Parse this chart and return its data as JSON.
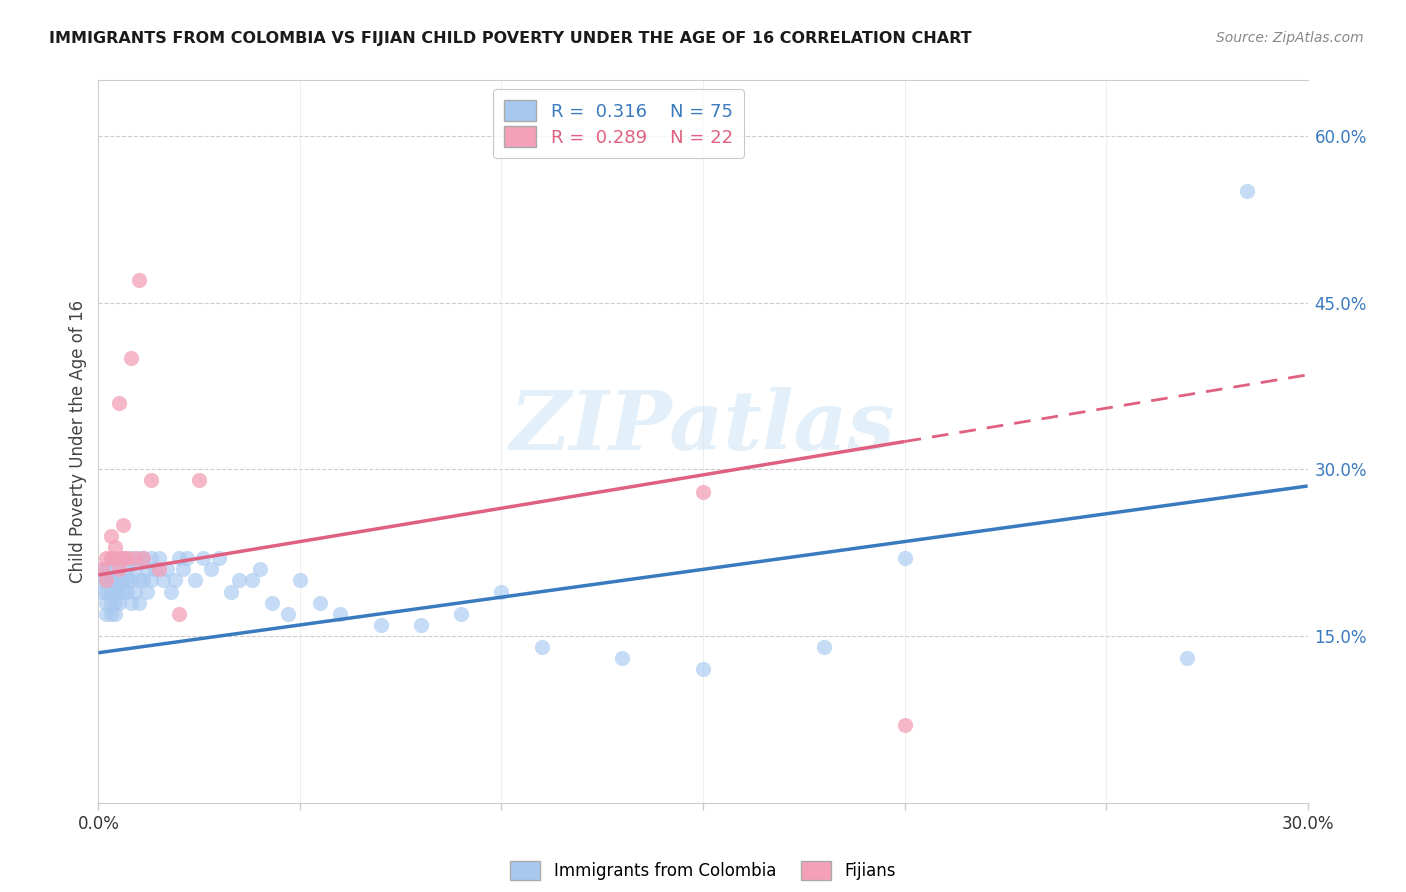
{
  "title": "IMMIGRANTS FROM COLOMBIA VS FIJIAN CHILD POVERTY UNDER THE AGE OF 16 CORRELATION CHART",
  "source": "Source: ZipAtlas.com",
  "ylabel": "Child Poverty Under the Age of 16",
  "yticks": [
    "15.0%",
    "30.0%",
    "45.0%",
    "60.0%"
  ],
  "ytick_vals": [
    0.15,
    0.3,
    0.45,
    0.6
  ],
  "xlim": [
    0.0,
    0.3
  ],
  "ylim": [
    0.0,
    0.65
  ],
  "legend_r_colombia": "0.316",
  "legend_n_colombia": "75",
  "legend_r_fijian": "0.289",
  "legend_n_fijian": "22",
  "legend_label_colombia": "Immigrants from Colombia",
  "legend_label_fijian": "Fijians",
  "color_colombia": "#a8c8f0",
  "color_fijian": "#f4a0b8",
  "color_trendline_colombia": "#3a7abf",
  "color_trendline_fijian": "#e06080",
  "watermark": "ZIPatlas",
  "background_color": "#ffffff",
  "grid_color": "#cccccc",
  "colombia_x": [
    0.001,
    0.001,
    0.001,
    0.002,
    0.002,
    0.002,
    0.002,
    0.002,
    0.003,
    0.003,
    0.003,
    0.003,
    0.003,
    0.003,
    0.004,
    0.004,
    0.004,
    0.004,
    0.005,
    0.005,
    0.005,
    0.005,
    0.006,
    0.006,
    0.006,
    0.007,
    0.007,
    0.007,
    0.008,
    0.008,
    0.008,
    0.009,
    0.009,
    0.01,
    0.01,
    0.01,
    0.011,
    0.011,
    0.012,
    0.012,
    0.013,
    0.013,
    0.014,
    0.015,
    0.016,
    0.017,
    0.018,
    0.019,
    0.02,
    0.021,
    0.022,
    0.024,
    0.026,
    0.028,
    0.03,
    0.033,
    0.035,
    0.038,
    0.04,
    0.043,
    0.047,
    0.05,
    0.055,
    0.06,
    0.07,
    0.08,
    0.09,
    0.1,
    0.11,
    0.13,
    0.15,
    0.18,
    0.2,
    0.27,
    0.285
  ],
  "colombia_y": [
    0.2,
    0.19,
    0.21,
    0.18,
    0.2,
    0.17,
    0.19,
    0.21,
    0.18,
    0.2,
    0.17,
    0.19,
    0.21,
    0.22,
    0.19,
    0.2,
    0.17,
    0.18,
    0.21,
    0.19,
    0.2,
    0.18,
    0.22,
    0.2,
    0.19,
    0.21,
    0.2,
    0.19,
    0.22,
    0.2,
    0.18,
    0.21,
    0.19,
    0.22,
    0.2,
    0.18,
    0.22,
    0.2,
    0.21,
    0.19,
    0.22,
    0.2,
    0.21,
    0.22,
    0.2,
    0.21,
    0.19,
    0.2,
    0.22,
    0.21,
    0.22,
    0.2,
    0.22,
    0.21,
    0.22,
    0.19,
    0.2,
    0.2,
    0.21,
    0.18,
    0.17,
    0.2,
    0.18,
    0.17,
    0.16,
    0.16,
    0.17,
    0.19,
    0.14,
    0.13,
    0.12,
    0.14,
    0.22,
    0.13,
    0.55
  ],
  "fijian_x": [
    0.001,
    0.002,
    0.002,
    0.003,
    0.003,
    0.004,
    0.004,
    0.005,
    0.005,
    0.006,
    0.006,
    0.007,
    0.008,
    0.009,
    0.01,
    0.011,
    0.013,
    0.015,
    0.02,
    0.025,
    0.15,
    0.2
  ],
  "fijian_y": [
    0.21,
    0.2,
    0.22,
    0.22,
    0.24,
    0.23,
    0.22,
    0.21,
    0.36,
    0.22,
    0.25,
    0.22,
    0.4,
    0.22,
    0.47,
    0.22,
    0.29,
    0.21,
    0.17,
    0.29,
    0.28,
    0.07
  ],
  "trendline_blue_x0": 0.0,
  "trendline_blue_y0": 0.135,
  "trendline_blue_x1": 0.3,
  "trendline_blue_y1": 0.285,
  "trendline_pink_x0": 0.0,
  "trendline_pink_y0": 0.205,
  "trendline_pink_x1": 0.3,
  "trendline_pink_y1": 0.385,
  "trendline_pink_dash_x0": 0.2,
  "trendline_pink_dash_y0": 0.325,
  "trendline_pink_dash_x1": 0.3,
  "trendline_pink_dash_y1": 0.385
}
